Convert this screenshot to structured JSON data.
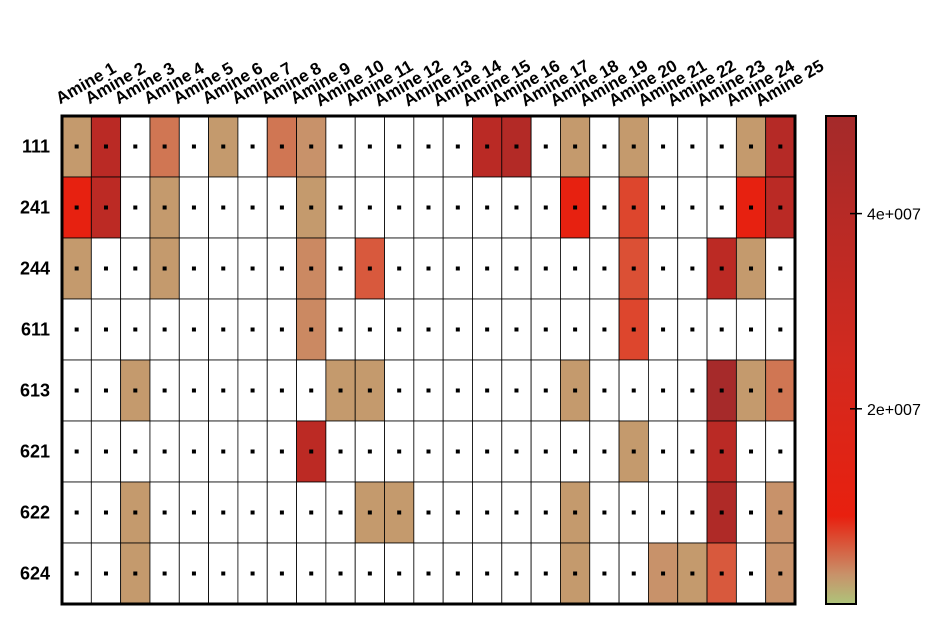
{
  "chart_data": {
    "type": "heatmap",
    "title": "",
    "columns": [
      "Amine 1",
      "Amine 2",
      "Amine 3",
      "Amine 4",
      "Amine 5",
      "Amine 6",
      "Amine 7",
      "Amine 8",
      "Amine 9",
      "Amine 10",
      "Amine 11",
      "Amine 12",
      "Amine 13",
      "Amine 14",
      "Amine 15",
      "Amine 16",
      "Amine 17",
      "Amine 18",
      "Amine 19",
      "Amine 20",
      "Amine 21",
      "Amine 22",
      "Amine 23",
      "Amine 24",
      "Amine 25"
    ],
    "rows": [
      "111",
      "241",
      "244",
      "611",
      "613",
      "621",
      "622",
      "624"
    ],
    "values": [
      [
        2500000,
        38000000,
        null,
        4500000,
        null,
        2500000,
        null,
        4500000,
        3000000,
        null,
        null,
        null,
        null,
        null,
        38000000,
        42000000,
        null,
        2500000,
        null,
        2500000,
        null,
        null,
        null,
        2500000,
        41000000
      ],
      [
        10000000,
        37000000,
        null,
        2500000,
        null,
        null,
        null,
        null,
        2500000,
        null,
        null,
        null,
        null,
        null,
        null,
        null,
        null,
        10000000,
        null,
        7000000,
        null,
        null,
        null,
        10000000,
        38000000
      ],
      [
        2500000,
        null,
        null,
        2500000,
        null,
        null,
        null,
        null,
        3500000,
        null,
        6000000,
        null,
        null,
        null,
        null,
        null,
        null,
        null,
        null,
        6500000,
        null,
        null,
        37000000,
        2500000,
        null
      ],
      [
        null,
        null,
        null,
        null,
        null,
        null,
        null,
        null,
        3500000,
        null,
        null,
        null,
        null,
        null,
        null,
        null,
        null,
        null,
        null,
        7000000,
        null,
        null,
        null,
        null,
        null
      ],
      [
        null,
        null,
        2500000,
        null,
        null,
        null,
        null,
        null,
        null,
        2500000,
        2500000,
        null,
        null,
        null,
        null,
        null,
        null,
        2500000,
        null,
        null,
        null,
        null,
        49000000,
        2500000,
        4500000
      ],
      [
        null,
        null,
        null,
        null,
        null,
        null,
        null,
        null,
        37000000,
        null,
        null,
        null,
        null,
        null,
        null,
        null,
        null,
        null,
        null,
        2500000,
        null,
        null,
        38000000,
        null,
        null
      ],
      [
        null,
        null,
        2500000,
        null,
        null,
        null,
        null,
        null,
        null,
        null,
        2500000,
        2500000,
        null,
        null,
        null,
        null,
        null,
        2500000,
        null,
        null,
        null,
        null,
        44000000,
        null,
        3000000
      ],
      [
        null,
        null,
        2500000,
        null,
        null,
        null,
        null,
        null,
        null,
        null,
        null,
        null,
        null,
        null,
        null,
        null,
        null,
        2500000,
        null,
        null,
        3000000,
        2500000,
        6000000,
        null,
        3000000
      ]
    ],
    "colorbar": {
      "min": 0,
      "max": 50000000,
      "ticks": [
        {
          "value": 20000000,
          "label": "2e+007"
        },
        {
          "value": 40000000,
          "label": "4e+007"
        }
      ],
      "stops": [
        {
          "value": 0,
          "color": "#aec47a"
        },
        {
          "value": 3000000,
          "color": "#c8926a"
        },
        {
          "value": 9000000,
          "color": "#e8200f"
        },
        {
          "value": 25000000,
          "color": "#d22a1f"
        },
        {
          "value": 50000000,
          "color": "#a42a2a"
        }
      ]
    },
    "empty_cell_color": "#ffffff",
    "grid": true,
    "legend_position": "right"
  }
}
